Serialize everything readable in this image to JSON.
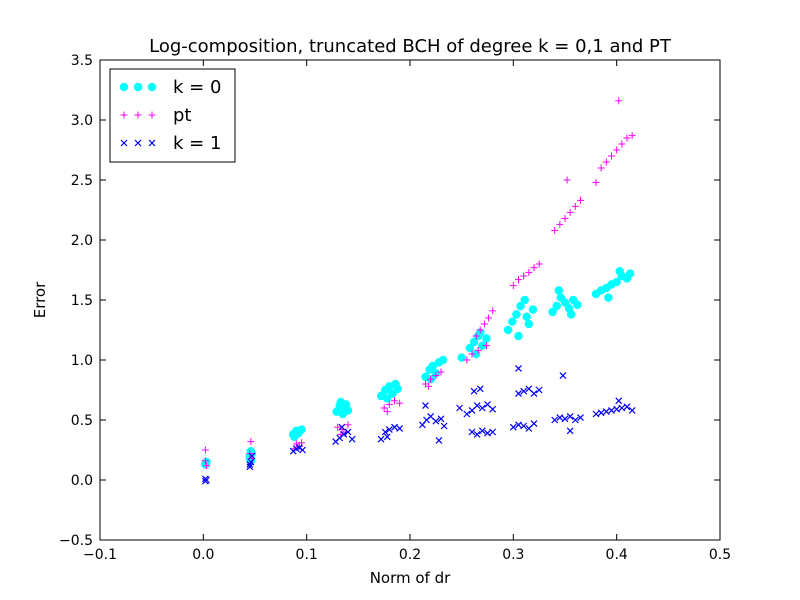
{
  "chart_data": {
    "type": "scatter",
    "title": "Log-composition, truncated BCH of degree k = 0,1 and PT",
    "xlabel": "Norm of dr",
    "ylabel": "Error",
    "xlim": [
      -0.1,
      0.5
    ],
    "ylim": [
      -0.5,
      3.5
    ],
    "xticks": [
      "−0.1",
      "0.0",
      "0.1",
      "0.2",
      "0.3",
      "0.4",
      "0.5"
    ],
    "yticks": [
      "−0.5",
      "0.0",
      "0.5",
      "1.0",
      "1.5",
      "2.0",
      "2.5",
      "3.0",
      "3.5"
    ],
    "grid": false,
    "legend_position": "top-left",
    "series": [
      {
        "name": "k = 0",
        "marker": "circle",
        "color": "#00ffff",
        "points": [
          [
            0.002,
            0.14
          ],
          [
            0.002,
            0.13
          ],
          [
            0.003,
            0.15
          ],
          [
            0.045,
            0.2
          ],
          [
            0.046,
            0.24
          ],
          [
            0.046,
            0.16
          ],
          [
            0.047,
            0.22
          ],
          [
            0.045,
            0.18
          ],
          [
            0.087,
            0.38
          ],
          [
            0.09,
            0.41
          ],
          [
            0.092,
            0.39
          ],
          [
            0.095,
            0.42
          ],
          [
            0.088,
            0.36
          ],
          [
            0.129,
            0.57
          ],
          [
            0.132,
            0.62
          ],
          [
            0.135,
            0.55
          ],
          [
            0.137,
            0.6
          ],
          [
            0.14,
            0.58
          ],
          [
            0.133,
            0.65
          ],
          [
            0.138,
            0.63
          ],
          [
            0.172,
            0.7
          ],
          [
            0.176,
            0.75
          ],
          [
            0.18,
            0.78
          ],
          [
            0.183,
            0.72
          ],
          [
            0.186,
            0.8
          ],
          [
            0.178,
            0.68
          ],
          [
            0.188,
            0.76
          ],
          [
            0.215,
            0.86
          ],
          [
            0.219,
            0.92
          ],
          [
            0.222,
            0.95
          ],
          [
            0.225,
            0.89
          ],
          [
            0.228,
            0.98
          ],
          [
            0.232,
            1.0
          ],
          [
            0.22,
            0.84
          ],
          [
            0.25,
            1.02
          ],
          [
            0.258,
            1.1
          ],
          [
            0.262,
            1.15
          ],
          [
            0.266,
            1.2
          ],
          [
            0.27,
            1.12
          ],
          [
            0.274,
            1.18
          ],
          [
            0.264,
            1.05
          ],
          [
            0.268,
            1.23
          ],
          [
            0.295,
            1.25
          ],
          [
            0.299,
            1.32
          ],
          [
            0.303,
            1.38
          ],
          [
            0.307,
            1.45
          ],
          [
            0.311,
            1.5
          ],
          [
            0.315,
            1.3
          ],
          [
            0.319,
            1.42
          ],
          [
            0.305,
            1.2
          ],
          [
            0.313,
            1.36
          ],
          [
            0.338,
            1.4
          ],
          [
            0.342,
            1.45
          ],
          [
            0.346,
            1.52
          ],
          [
            0.35,
            1.48
          ],
          [
            0.354,
            1.43
          ],
          [
            0.358,
            1.5
          ],
          [
            0.362,
            1.46
          ],
          [
            0.344,
            1.58
          ],
          [
            0.356,
            1.38
          ],
          [
            0.38,
            1.55
          ],
          [
            0.385,
            1.58
          ],
          [
            0.39,
            1.6
          ],
          [
            0.395,
            1.63
          ],
          [
            0.4,
            1.65
          ],
          [
            0.405,
            1.7
          ],
          [
            0.41,
            1.68
          ],
          [
            0.403,
            1.74
          ],
          [
            0.413,
            1.72
          ],
          [
            0.392,
            1.52
          ]
        ]
      },
      {
        "name": "pt",
        "marker": "plus",
        "color": "#ff00ff",
        "points": [
          [
            0.002,
            0.25
          ],
          [
            0.002,
            0.16
          ],
          [
            0.003,
            0.12
          ],
          [
            0.046,
            0.32
          ],
          [
            0.045,
            0.22
          ],
          [
            0.047,
            0.18
          ],
          [
            0.09,
            0.3
          ],
          [
            0.093,
            0.28
          ],
          [
            0.088,
            0.26
          ],
          [
            0.095,
            0.31
          ],
          [
            0.13,
            0.44
          ],
          [
            0.135,
            0.42
          ],
          [
            0.14,
            0.46
          ],
          [
            0.133,
            0.38
          ],
          [
            0.138,
            0.4
          ],
          [
            0.175,
            0.6
          ],
          [
            0.18,
            0.63
          ],
          [
            0.185,
            0.66
          ],
          [
            0.178,
            0.57
          ],
          [
            0.19,
            0.64
          ],
          [
            0.215,
            0.8
          ],
          [
            0.22,
            0.84
          ],
          [
            0.225,
            0.87
          ],
          [
            0.23,
            0.9
          ],
          [
            0.218,
            0.78
          ],
          [
            0.255,
            1.0
          ],
          [
            0.26,
            1.05
          ],
          [
            0.264,
            1.2
          ],
          [
            0.268,
            1.25
          ],
          [
            0.272,
            1.3
          ],
          [
            0.276,
            1.35
          ],
          [
            0.28,
            1.41
          ],
          [
            0.266,
            1.08
          ],
          [
            0.274,
            1.12
          ],
          [
            0.3,
            1.62
          ],
          [
            0.305,
            1.67
          ],
          [
            0.31,
            1.7
          ],
          [
            0.315,
            1.73
          ],
          [
            0.32,
            1.77
          ],
          [
            0.325,
            1.8
          ],
          [
            0.34,
            2.08
          ],
          [
            0.345,
            2.13
          ],
          [
            0.35,
            2.18
          ],
          [
            0.355,
            2.23
          ],
          [
            0.36,
            2.28
          ],
          [
            0.365,
            2.33
          ],
          [
            0.352,
            2.5
          ],
          [
            0.38,
            2.48
          ],
          [
            0.385,
            2.6
          ],
          [
            0.39,
            2.65
          ],
          [
            0.395,
            2.7
          ],
          [
            0.4,
            2.75
          ],
          [
            0.405,
            2.8
          ],
          [
            0.41,
            2.85
          ],
          [
            0.415,
            2.87
          ],
          [
            0.402,
            3.16
          ]
        ]
      },
      {
        "name": "k = 1",
        "marker": "x",
        "color": "#0000ff",
        "points": [
          [
            0.002,
            0.01
          ],
          [
            0.002,
            -0.01
          ],
          [
            0.003,
            0.0
          ],
          [
            0.045,
            0.11
          ],
          [
            0.046,
            0.15
          ],
          [
            0.047,
            0.2
          ],
          [
            0.045,
            0.13
          ],
          [
            0.087,
            0.24
          ],
          [
            0.09,
            0.26
          ],
          [
            0.093,
            0.27
          ],
          [
            0.096,
            0.25
          ],
          [
            0.128,
            0.32
          ],
          [
            0.132,
            0.35
          ],
          [
            0.136,
            0.38
          ],
          [
            0.14,
            0.4
          ],
          [
            0.134,
            0.44
          ],
          [
            0.144,
            0.34
          ],
          [
            0.172,
            0.34
          ],
          [
            0.176,
            0.4
          ],
          [
            0.18,
            0.42
          ],
          [
            0.185,
            0.44
          ],
          [
            0.19,
            0.43
          ],
          [
            0.178,
            0.36
          ],
          [
            0.212,
            0.46
          ],
          [
            0.216,
            0.5
          ],
          [
            0.22,
            0.53
          ],
          [
            0.225,
            0.49
          ],
          [
            0.23,
            0.51
          ],
          [
            0.233,
            0.45
          ],
          [
            0.215,
            0.62
          ],
          [
            0.228,
            0.33
          ],
          [
            0.248,
            0.6
          ],
          [
            0.255,
            0.55
          ],
          [
            0.26,
            0.58
          ],
          [
            0.265,
            0.62
          ],
          [
            0.27,
            0.6
          ],
          [
            0.275,
            0.63
          ],
          [
            0.28,
            0.59
          ],
          [
            0.262,
            0.74
          ],
          [
            0.268,
            0.76
          ],
          [
            0.26,
            0.4
          ],
          [
            0.265,
            0.38
          ],
          [
            0.27,
            0.41
          ],
          [
            0.275,
            0.39
          ],
          [
            0.28,
            0.4
          ],
          [
            0.3,
            0.44
          ],
          [
            0.305,
            0.46
          ],
          [
            0.31,
            0.45
          ],
          [
            0.315,
            0.43
          ],
          [
            0.32,
            0.47
          ],
          [
            0.305,
            0.93
          ],
          [
            0.305,
            0.72
          ],
          [
            0.31,
            0.74
          ],
          [
            0.315,
            0.76
          ],
          [
            0.32,
            0.72
          ],
          [
            0.325,
            0.75
          ],
          [
            0.34,
            0.5
          ],
          [
            0.345,
            0.52
          ],
          [
            0.35,
            0.51
          ],
          [
            0.355,
            0.53
          ],
          [
            0.36,
            0.5
          ],
          [
            0.365,
            0.52
          ],
          [
            0.348,
            0.87
          ],
          [
            0.355,
            0.41
          ],
          [
            0.38,
            0.55
          ],
          [
            0.385,
            0.56
          ],
          [
            0.39,
            0.57
          ],
          [
            0.395,
            0.58
          ],
          [
            0.4,
            0.59
          ],
          [
            0.405,
            0.6
          ],
          [
            0.41,
            0.61
          ],
          [
            0.415,
            0.58
          ],
          [
            0.402,
            0.66
          ]
        ]
      }
    ]
  }
}
